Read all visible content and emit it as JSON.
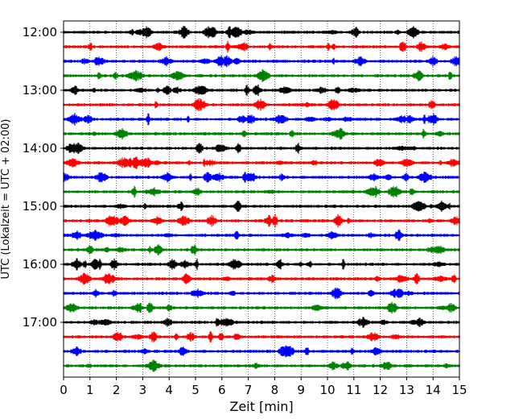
{
  "chart_data": {
    "type": "line",
    "title": "",
    "xlabel": "Zeit  [min]",
    "ylabel": "UTC (Lokalzeit = UTC + 02:00)",
    "xlim": [
      0,
      15
    ],
    "x_ticks": [
      "0",
      "1",
      "2",
      "3",
      "4",
      "5",
      "6",
      "7",
      "8",
      "9",
      "10",
      "11",
      "12",
      "13",
      "14",
      "15"
    ],
    "y_tick_labels": [
      "12:00",
      "13:00",
      "14:00",
      "15:00",
      "16:00",
      "17:00"
    ],
    "grid": "vertical dotted",
    "trace_colors": [
      "#000000",
      "#ff0000",
      "#0000ff",
      "#008000"
    ],
    "series": [
      {
        "start": "12:00",
        "color": "#000000"
      },
      {
        "start": "12:15",
        "color": "#ff0000"
      },
      {
        "start": "12:30",
        "color": "#0000ff"
      },
      {
        "start": "12:45",
        "color": "#008000"
      },
      {
        "start": "13:00",
        "color": "#000000"
      },
      {
        "start": "13:15",
        "color": "#ff0000"
      },
      {
        "start": "13:30",
        "color": "#0000ff"
      },
      {
        "start": "13:45",
        "color": "#008000"
      },
      {
        "start": "14:00",
        "color": "#000000"
      },
      {
        "start": "14:15",
        "color": "#ff0000"
      },
      {
        "start": "14:30",
        "color": "#0000ff"
      },
      {
        "start": "14:45",
        "color": "#008000"
      },
      {
        "start": "15:00",
        "color": "#000000"
      },
      {
        "start": "15:15",
        "color": "#ff0000"
      },
      {
        "start": "15:30",
        "color": "#0000ff"
      },
      {
        "start": "15:45",
        "color": "#008000"
      },
      {
        "start": "16:00",
        "color": "#000000"
      },
      {
        "start": "16:15",
        "color": "#ff0000"
      },
      {
        "start": "16:30",
        "color": "#0000ff"
      },
      {
        "start": "16:45",
        "color": "#008000"
      },
      {
        "start": "17:00",
        "color": "#000000"
      },
      {
        "start": "17:15",
        "color": "#ff0000"
      },
      {
        "start": "17:30",
        "color": "#0000ff"
      },
      {
        "start": "17:45",
        "color": "#008000"
      }
    ]
  }
}
